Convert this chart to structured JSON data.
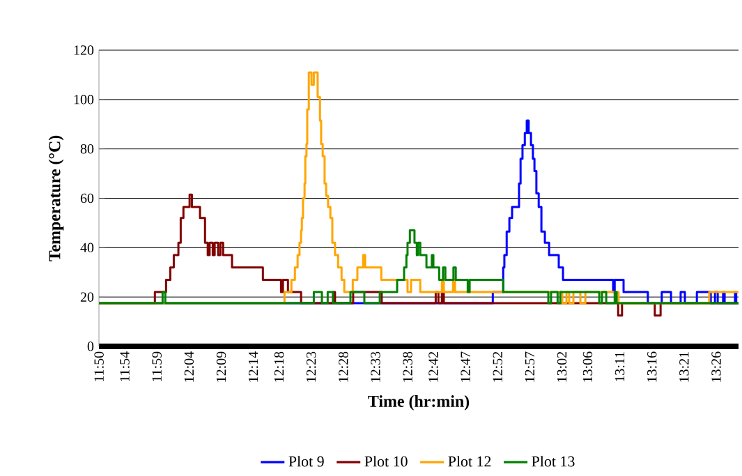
{
  "chart_data": {
    "type": "step",
    "xlabel": "Time (hr:min)",
    "ylabel": "Temperature (°C)",
    "xlim": [
      11.833,
      13.491
    ],
    "ylim": [
      0,
      120
    ],
    "yticks": [
      0,
      20,
      40,
      60,
      80,
      100,
      120
    ],
    "xticks": [
      {
        "value": 11.8333,
        "label": "11:50"
      },
      {
        "value": 11.9,
        "label": "11:54"
      },
      {
        "value": 11.9833,
        "label": "11:59"
      },
      {
        "value": 12.0667,
        "label": "12:04"
      },
      {
        "value": 12.15,
        "label": "12:09"
      },
      {
        "value": 12.2333,
        "label": "12:14"
      },
      {
        "value": 12.3,
        "label": "12:18"
      },
      {
        "value": 12.3833,
        "label": "12:23"
      },
      {
        "value": 12.4667,
        "label": "12:28"
      },
      {
        "value": 12.55,
        "label": "12:33"
      },
      {
        "value": 12.6333,
        "label": "12:38"
      },
      {
        "value": 12.7,
        "label": "12:42"
      },
      {
        "value": 12.7833,
        "label": "12:47"
      },
      {
        "value": 12.8667,
        "label": "12:52"
      },
      {
        "value": 12.95,
        "label": "12:57"
      },
      {
        "value": 13.0333,
        "label": "13:02"
      },
      {
        "value": 13.1,
        "label": "13:06"
      },
      {
        "value": 13.1833,
        "label": "13:11"
      },
      {
        "value": 13.2667,
        "label": "13:16"
      },
      {
        "value": 13.35,
        "label": "13:21"
      },
      {
        "value": 13.4333,
        "label": "13:26"
      }
    ],
    "grid": "y",
    "legend": "bottom",
    "series": [
      {
        "name": "Plot 9",
        "color": "#0000ff",
        "x": [
          11.833,
          12.854,
          12.881,
          12.884,
          12.89,
          12.897,
          12.904,
          12.922,
          12.926,
          12.931,
          12.937,
          12.942,
          12.947,
          12.953,
          12.958,
          12.962,
          12.967,
          12.973,
          12.98,
          12.989,
          13.0,
          13.025,
          13.036,
          13.166,
          13.17,
          13.193,
          13.256,
          13.292,
          13.316,
          13.341,
          13.352,
          13.383,
          13.419,
          13.43,
          13.437,
          13.451,
          13.455,
          13.482,
          13.485,
          13.491
        ],
        "values": [
          17.5,
          22,
          32,
          37,
          46.5,
          52,
          56.5,
          66,
          76,
          81.5,
          86.5,
          91.5,
          86.5,
          81.5,
          76,
          71,
          62,
          56.5,
          46.5,
          42,
          37,
          32,
          27,
          22,
          27,
          22,
          17.5,
          22,
          17.5,
          22,
          17.5,
          22,
          17.5,
          22,
          17.5,
          22,
          17.5,
          22,
          17.5,
          17.5
        ]
      },
      {
        "name": "Plot 10",
        "color": "#800000",
        "x": [
          11.833,
          11.978,
          12.007,
          12.018,
          12.027,
          12.039,
          12.045,
          12.052,
          12.068,
          12.074,
          12.095,
          12.108,
          12.115,
          12.12,
          12.128,
          12.133,
          12.142,
          12.148,
          12.155,
          12.178,
          12.258,
          12.305,
          12.31,
          12.323,
          12.357,
          12.44,
          12.445,
          12.492,
          12.566,
          12.706,
          12.713,
          12.722,
          12.727,
          13.179,
          13.189,
          13.274,
          13.289,
          13.491
        ],
        "values": [
          17.5,
          22,
          27,
          32,
          37,
          42,
          52,
          56.5,
          61.5,
          56.5,
          52,
          42,
          37,
          42,
          37,
          42,
          37,
          42,
          37,
          32,
          27,
          22,
          27,
          22,
          17.5,
          22,
          17.5,
          22,
          17.5,
          22,
          17.5,
          22,
          17.5,
          12.5,
          17.5,
          12.5,
          17.5,
          17.5
        ]
      },
      {
        "name": "Plot 12",
        "color": "#ffa500",
        "x": [
          11.833,
          12.314,
          12.332,
          12.341,
          12.348,
          12.353,
          12.357,
          12.359,
          12.362,
          12.366,
          12.368,
          12.371,
          12.373,
          12.377,
          12.384,
          12.39,
          12.4,
          12.406,
          12.409,
          12.413,
          12.418,
          12.422,
          12.427,
          12.433,
          12.438,
          12.445,
          12.453,
          12.462,
          12.469,
          12.491,
          12.503,
          12.518,
          12.523,
          12.565,
          12.633,
          12.642,
          12.666,
          12.722,
          12.727,
          12.751,
          12.756,
          13.034,
          13.045,
          13.052,
          13.063,
          13.081,
          13.094,
          13.18,
          13.415,
          13.491
        ],
        "values": [
          17.5,
          22,
          27,
          32,
          37,
          42,
          47,
          52,
          60,
          66,
          77,
          82,
          96,
          111,
          106,
          111,
          101,
          91.5,
          82,
          77,
          66,
          61,
          56.5,
          52,
          42,
          37,
          32,
          27,
          22,
          27,
          32,
          37,
          32,
          27,
          22,
          27,
          22,
          27,
          22,
          27,
          22,
          17.5,
          22,
          17.5,
          22,
          17.5,
          22,
          17.5,
          22,
          22
        ]
      },
      {
        "name": "Plot 13",
        "color": "#008000",
        "x": [
          11.833,
          11.998,
          12.005,
          12.39,
          12.411,
          12.426,
          12.44,
          12.485,
          12.521,
          12.561,
          12.606,
          12.624,
          12.63,
          12.633,
          12.639,
          12.651,
          12.657,
          12.66,
          12.666,
          12.682,
          12.696,
          12.7,
          12.715,
          12.725,
          12.731,
          12.752,
          12.758,
          12.789,
          12.794,
          12.881,
          12.998,
          13.005,
          13.022,
          13.029,
          13.13,
          13.137,
          13.148,
          13.17,
          13.175,
          13.491
        ],
        "values": [
          17.5,
          22,
          17.5,
          22,
          17.5,
          22,
          17.5,
          22,
          17.5,
          22,
          27,
          32,
          37,
          42,
          47,
          42,
          37,
          42,
          37,
          32,
          37,
          32,
          27,
          32,
          27,
          32,
          27,
          22,
          27,
          22,
          17.5,
          22,
          17.5,
          22,
          17.5,
          22,
          17.5,
          22,
          17.5,
          17.5
        ]
      }
    ]
  }
}
